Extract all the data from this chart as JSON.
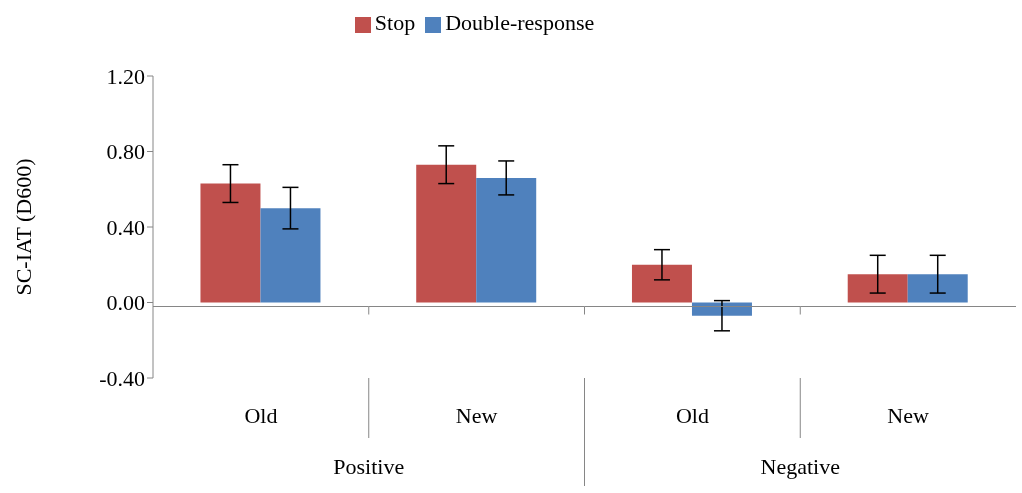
{
  "chart_data": {
    "type": "bar",
    "ylabel": "SC-IAT (D600)",
    "categories": [
      "Old",
      "New",
      "Old",
      "New"
    ],
    "annotations": [
      "Positive",
      "Negative"
    ],
    "series": [
      {
        "name": "Stop",
        "color": "#c0504d",
        "values": [
          0.63,
          0.73,
          0.2,
          0.15
        ],
        "errors": [
          0.1,
          0.1,
          0.08,
          0.1
        ]
      },
      {
        "name": "Double-response",
        "color": "#4f81bd",
        "values": [
          0.5,
          0.66,
          -0.07,
          0.15
        ],
        "errors": [
          0.11,
          0.09,
          0.08,
          0.1
        ]
      }
    ],
    "ylim": [
      -0.4,
      1.2
    ],
    "yticks": [
      {
        "value": -0.4,
        "label": "-0.40"
      },
      {
        "value": 0,
        "label": "0.00"
      },
      {
        "value": 0.4,
        "label": "0.40"
      },
      {
        "value": 0.8,
        "label": "0.80"
      },
      {
        "value": 1.2,
        "label": "1.20"
      }
    ],
    "grid": false,
    "legend": "top"
  }
}
